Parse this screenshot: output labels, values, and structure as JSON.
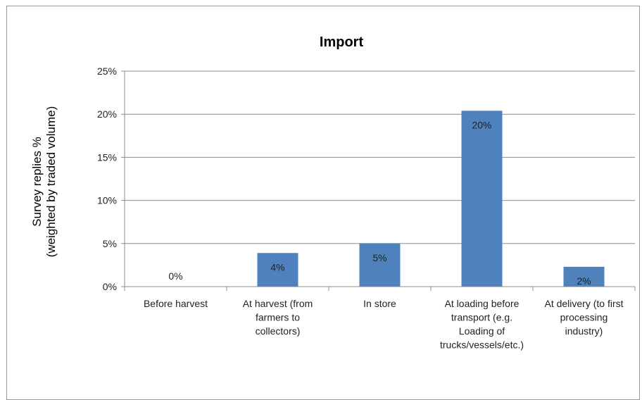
{
  "chart_data": {
    "type": "bar",
    "title": "Import",
    "ylabel_lines": [
      "Survey replies %",
      "(weighted by traded volume)"
    ],
    "xlabel": "",
    "ylim": [
      0,
      25
    ],
    "yticks": [
      "0%",
      "5%",
      "10%",
      "15%",
      "20%",
      "25%"
    ],
    "grid": true,
    "bar_color": "#4f81bd",
    "categories": [
      [
        "Before harvest"
      ],
      [
        "At harvest (from",
        "farmers to",
        "collectors)"
      ],
      [
        "In store"
      ],
      [
        "At loading before",
        "transport (e.g.",
        "Loading of",
        "trucks/vessels/etc.)"
      ],
      [
        "At delivery (to first",
        "processing",
        "industry)"
      ]
    ],
    "values": [
      0,
      3.9,
      5.0,
      20.4,
      2.3
    ],
    "data_labels": [
      "0%",
      "4%",
      "5%",
      "20%",
      "2%"
    ]
  }
}
